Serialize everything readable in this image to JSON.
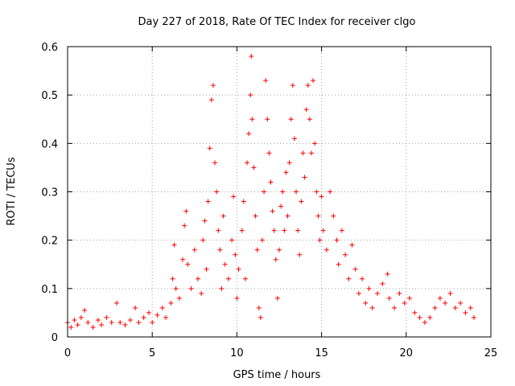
{
  "chart_data": {
    "type": "scatter",
    "title": "Day 227 of 2018, Rate Of TEC Index for receiver clgo",
    "xlabel": "GPS time / hours",
    "ylabel": "ROTI / TECUs",
    "xlim": [
      0,
      25
    ],
    "ylim": [
      0,
      0.6
    ],
    "xticks": [
      "0",
      "5",
      "10",
      "15",
      "20",
      "25"
    ],
    "yticks": [
      "0",
      "0.1",
      "0.2",
      "0.3",
      "0.4",
      "0.5",
      "0.6"
    ],
    "grid": true,
    "marker": "+",
    "color": "#ff0000",
    "series": [
      {
        "name": "ROTI",
        "points": [
          [
            0.0,
            0.03
          ],
          [
            0.2,
            0.02
          ],
          [
            0.4,
            0.035
          ],
          [
            0.6,
            0.025
          ],
          [
            0.8,
            0.04
          ],
          [
            1.0,
            0.055
          ],
          [
            1.2,
            0.03
          ],
          [
            1.5,
            0.02
          ],
          [
            1.8,
            0.035
          ],
          [
            2.0,
            0.025
          ],
          [
            2.3,
            0.04
          ],
          [
            2.6,
            0.03
          ],
          [
            2.9,
            0.07
          ],
          [
            3.1,
            0.03
          ],
          [
            3.4,
            0.025
          ],
          [
            3.7,
            0.035
          ],
          [
            4.0,
            0.06
          ],
          [
            4.2,
            0.03
          ],
          [
            4.5,
            0.04
          ],
          [
            4.8,
            0.05
          ],
          [
            5.0,
            0.03
          ],
          [
            5.3,
            0.045
          ],
          [
            5.6,
            0.06
          ],
          [
            5.8,
            0.04
          ],
          [
            6.1,
            0.07
          ],
          [
            6.2,
            0.12
          ],
          [
            6.3,
            0.19
          ],
          [
            6.4,
            0.1
          ],
          [
            6.6,
            0.08
          ],
          [
            6.8,
            0.16
          ],
          [
            6.9,
            0.23
          ],
          [
            7.0,
            0.26
          ],
          [
            7.1,
            0.15
          ],
          [
            7.3,
            0.1
          ],
          [
            7.5,
            0.18
          ],
          [
            7.7,
            0.12
          ],
          [
            7.9,
            0.09
          ],
          [
            8.0,
            0.2
          ],
          [
            8.1,
            0.24
          ],
          [
            8.2,
            0.14
          ],
          [
            8.3,
            0.28
          ],
          [
            8.4,
            0.39
          ],
          [
            8.5,
            0.49
          ],
          [
            8.6,
            0.52
          ],
          [
            8.7,
            0.36
          ],
          [
            8.8,
            0.3
          ],
          [
            8.9,
            0.22
          ],
          [
            9.0,
            0.18
          ],
          [
            9.1,
            0.1
          ],
          [
            9.2,
            0.25
          ],
          [
            9.3,
            0.15
          ],
          [
            9.5,
            0.12
          ],
          [
            9.7,
            0.2
          ],
          [
            9.8,
            0.29
          ],
          [
            9.9,
            0.17
          ],
          [
            10.0,
            0.08
          ],
          [
            10.1,
            0.14
          ],
          [
            10.3,
            0.22
          ],
          [
            10.4,
            0.28
          ],
          [
            10.5,
            0.12
          ],
          [
            10.6,
            0.36
          ],
          [
            10.7,
            0.42
          ],
          [
            10.8,
            0.5
          ],
          [
            10.85,
            0.58
          ],
          [
            10.9,
            0.45
          ],
          [
            11.0,
            0.35
          ],
          [
            11.1,
            0.25
          ],
          [
            11.2,
            0.18
          ],
          [
            11.3,
            0.06
          ],
          [
            11.4,
            0.04
          ],
          [
            11.5,
            0.2
          ],
          [
            11.6,
            0.3
          ],
          [
            11.7,
            0.53
          ],
          [
            11.8,
            0.45
          ],
          [
            11.9,
            0.38
          ],
          [
            12.0,
            0.32
          ],
          [
            12.1,
            0.26
          ],
          [
            12.2,
            0.22
          ],
          [
            12.3,
            0.16
          ],
          [
            12.4,
            0.08
          ],
          [
            12.5,
            0.18
          ],
          [
            12.6,
            0.27
          ],
          [
            12.7,
            0.3
          ],
          [
            12.8,
            0.22
          ],
          [
            12.9,
            0.34
          ],
          [
            13.0,
            0.25
          ],
          [
            13.1,
            0.36
          ],
          [
            13.2,
            0.45
          ],
          [
            13.3,
            0.52
          ],
          [
            13.4,
            0.41
          ],
          [
            13.5,
            0.3
          ],
          [
            13.6,
            0.22
          ],
          [
            13.7,
            0.17
          ],
          [
            13.8,
            0.28
          ],
          [
            13.9,
            0.38
          ],
          [
            14.0,
            0.33
          ],
          [
            14.1,
            0.47
          ],
          [
            14.2,
            0.52
          ],
          [
            14.3,
            0.45
          ],
          [
            14.4,
            0.38
          ],
          [
            14.5,
            0.53
          ],
          [
            14.6,
            0.4
          ],
          [
            14.7,
            0.3
          ],
          [
            14.8,
            0.25
          ],
          [
            14.9,
            0.2
          ],
          [
            15.0,
            0.29
          ],
          [
            15.1,
            0.22
          ],
          [
            15.3,
            0.18
          ],
          [
            15.5,
            0.3
          ],
          [
            15.7,
            0.25
          ],
          [
            15.9,
            0.2
          ],
          [
            16.0,
            0.15
          ],
          [
            16.2,
            0.22
          ],
          [
            16.4,
            0.17
          ],
          [
            16.6,
            0.12
          ],
          [
            16.8,
            0.19
          ],
          [
            17.0,
            0.14
          ],
          [
            17.2,
            0.09
          ],
          [
            17.4,
            0.12
          ],
          [
            17.6,
            0.07
          ],
          [
            17.8,
            0.1
          ],
          [
            18.0,
            0.06
          ],
          [
            18.3,
            0.09
          ],
          [
            18.6,
            0.11
          ],
          [
            18.9,
            0.13
          ],
          [
            19.0,
            0.08
          ],
          [
            19.3,
            0.06
          ],
          [
            19.6,
            0.09
          ],
          [
            19.9,
            0.07
          ],
          [
            20.2,
            0.08
          ],
          [
            20.5,
            0.05
          ],
          [
            20.8,
            0.04
          ],
          [
            21.1,
            0.03
          ],
          [
            21.4,
            0.04
          ],
          [
            21.7,
            0.06
          ],
          [
            22.0,
            0.08
          ],
          [
            22.3,
            0.07
          ],
          [
            22.6,
            0.09
          ],
          [
            22.9,
            0.06
          ],
          [
            23.2,
            0.07
          ],
          [
            23.5,
            0.05
          ],
          [
            23.8,
            0.06
          ],
          [
            24.0,
            0.04
          ]
        ]
      }
    ]
  }
}
